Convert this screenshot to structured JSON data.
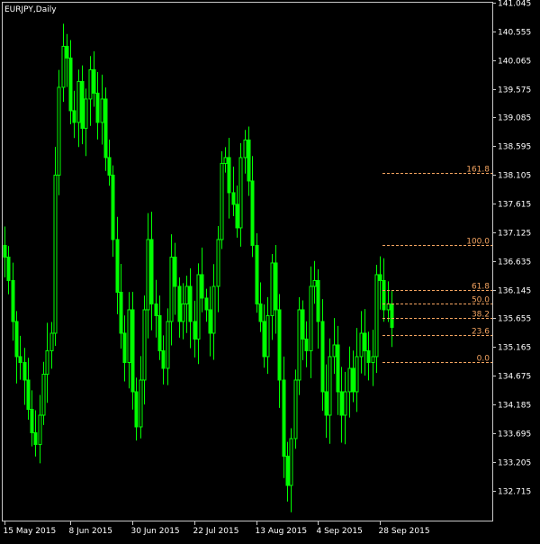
{
  "window": {
    "title": "EURJPY,Daily"
  },
  "colors": {
    "background": "#000000",
    "frame": "#c8c8c8",
    "candle": "#00ff00",
    "text": "#ffffff",
    "fibonacci": "#f4a460"
  },
  "chart_data": {
    "type": "candlestick",
    "symbol": "EURJPY",
    "timeframe": "Daily",
    "ylim": [
      132.2,
      141.045
    ],
    "y_ticks": [
      141.045,
      140.555,
      140.065,
      139.575,
      139.085,
      138.595,
      138.105,
      137.615,
      137.125,
      136.635,
      136.145,
      135.655,
      135.165,
      134.675,
      134.185,
      133.695,
      133.205,
      132.715
    ],
    "x_ticks": [
      {
        "label": "15 May 2015",
        "bar": 0
      },
      {
        "label": "8 Jun 2015",
        "bar": 17
      },
      {
        "label": "30 Jun 2015",
        "bar": 33
      },
      {
        "label": "22 Jul 2015",
        "bar": 49
      },
      {
        "label": "13 Aug 2015",
        "bar": 65
      },
      {
        "label": "4 Sep 2015",
        "bar": 81
      },
      {
        "label": "28 Sep 2015",
        "bar": 97
      }
    ],
    "closes": [
      136.7,
      136.3,
      135.6,
      135.0,
      134.9,
      134.6,
      134.1,
      133.7,
      133.5,
      134.0,
      134.7,
      135.1,
      135.4,
      138.1,
      139.6,
      140.3,
      140.1,
      139.2,
      139.0,
      139.7,
      138.9,
      139.4,
      139.9,
      139.5,
      139.0,
      139.4,
      138.4,
      138.1,
      137.0,
      136.1,
      135.4,
      134.9,
      135.8,
      134.4,
      133.8,
      134.6,
      135.8,
      137.0,
      135.9,
      135.7,
      135.1,
      134.8,
      135.6,
      136.7,
      136.2,
      135.6,
      135.9,
      136.2,
      135.6,
      135.3,
      136.4,
      136.0,
      135.8,
      135.4,
      136.2,
      137.0,
      138.3,
      138.4,
      137.8,
      137.6,
      137.2,
      138.4,
      138.7,
      138.0,
      136.9,
      135.9,
      135.6,
      135.0,
      135.7,
      136.6,
      135.8,
      134.6,
      133.3,
      132.8,
      133.6,
      134.6,
      135.8,
      135.3,
      135.1,
      136.2,
      136.3,
      135.6,
      134.4,
      134.0,
      135.0,
      135.2,
      134.4,
      134.0,
      134.4,
      134.8,
      134.4,
      135.0,
      135.4,
      135.1,
      134.9,
      135.0,
      136.4,
      136.3,
      135.8,
      135.9,
      135.5
    ]
  },
  "fibonacci": {
    "high": 136.9,
    "low": 134.9,
    "levels": [
      {
        "label": "161.8",
        "value": 1.618
      },
      {
        "label": "100.0",
        "value": 1.0
      },
      {
        "label": "61.8",
        "value": 0.618
      },
      {
        "label": "50.0",
        "value": 0.5
      },
      {
        "label": "38.2",
        "value": 0.382
      },
      {
        "label": "23.6",
        "value": 0.236
      },
      {
        "label": "0.0",
        "value": 0.0
      }
    ]
  }
}
